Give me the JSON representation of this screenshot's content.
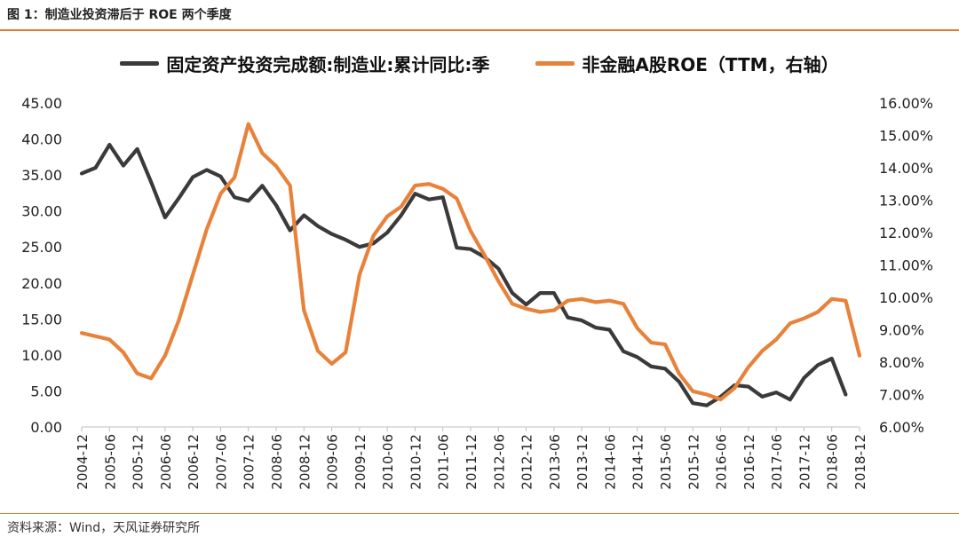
{
  "figure_title": "图 1：制造业投资滞后于 ROE 两个季度",
  "source_note": "资料来源：Wind，天风证券研究所",
  "colors": {
    "series_invest": "#3a3a3a",
    "series_roe": "#e8823a",
    "rule": "#e07c2f"
  },
  "chart_data": {
    "type": "line",
    "x": [
      "2004-12",
      "2005-03",
      "2005-06",
      "2005-09",
      "2005-12",
      "2006-03",
      "2006-06",
      "2006-09",
      "2006-12",
      "2007-03",
      "2007-06",
      "2007-09",
      "2007-12",
      "2008-03",
      "2008-06",
      "2008-09",
      "2008-12",
      "2009-03",
      "2009-06",
      "2009-09",
      "2009-12",
      "2010-03",
      "2010-06",
      "2010-09",
      "2010-12",
      "2011-03",
      "2011-06",
      "2011-09",
      "2011-12",
      "2012-03",
      "2012-06",
      "2012-09",
      "2012-12",
      "2013-03",
      "2013-06",
      "2013-09",
      "2013-12",
      "2014-03",
      "2014-06",
      "2014-09",
      "2014-12",
      "2015-03",
      "2015-06",
      "2015-09",
      "2015-12",
      "2016-03",
      "2016-06",
      "2016-09",
      "2016-12",
      "2017-03",
      "2017-06",
      "2017-09",
      "2017-12",
      "2018-03",
      "2018-06",
      "2018-09",
      "2018-12"
    ],
    "x_tick_labels": [
      "2004-12",
      "2005-06",
      "2005-12",
      "2006-06",
      "2006-12",
      "2007-06",
      "2007-12",
      "2008-06",
      "2008-12",
      "2009-06",
      "2009-12",
      "2010-06",
      "2010-12",
      "2011-06",
      "2011-12",
      "2012-06",
      "2012-12",
      "2013-06",
      "2013-12",
      "2014-06",
      "2014-12",
      "2015-06",
      "2015-12",
      "2016-06",
      "2016-12",
      "2017-06",
      "2017-12",
      "2018-06",
      "2018-12"
    ],
    "y_left_ticks": [
      "0.00",
      "5.00",
      "10.00",
      "15.00",
      "20.00",
      "25.00",
      "30.00",
      "35.00",
      "40.00",
      "45.00"
    ],
    "y_right_ticks": [
      "6.00%",
      "7.00%",
      "8.00%",
      "9.00%",
      "10.00%",
      "11.00%",
      "12.00%",
      "13.00%",
      "14.00%",
      "15.00%",
      "16.00%"
    ],
    "ylim_left": [
      0,
      45
    ],
    "ylim_right": [
      6,
      16
    ],
    "grid": false,
    "legend_position": "top-center",
    "series": [
      {
        "name": "固定资产投资完成额:制造业:累计同比:季",
        "axis": "left",
        "color": "#3a3a3a",
        "values": [
          35.2,
          36.0,
          39.2,
          36.3,
          38.6,
          34.0,
          29.1,
          31.8,
          34.7,
          35.7,
          34.8,
          31.9,
          31.4,
          33.5,
          30.8,
          27.3,
          29.4,
          27.9,
          26.8,
          26.0,
          25.0,
          25.5,
          27.0,
          29.4,
          32.4,
          31.6,
          31.9,
          24.9,
          24.7,
          23.6,
          22.0,
          18.6,
          17.0,
          18.6,
          18.6,
          15.2,
          14.8,
          13.8,
          13.5,
          10.5,
          9.7,
          8.4,
          8.1,
          6.3,
          3.3,
          3.0,
          4.2,
          5.8,
          5.6,
          4.2,
          4.8,
          3.8,
          6.8,
          8.6,
          9.5,
          4.5,
          null
        ]
      },
      {
        "name": "非金融A股ROE（TTM，右轴）",
        "axis": "right",
        "color": "#e8823a",
        "values": [
          8.9,
          8.8,
          8.7,
          8.3,
          7.65,
          7.5,
          8.2,
          9.3,
          10.7,
          12.1,
          13.2,
          13.7,
          15.35,
          14.45,
          14.05,
          13.45,
          9.6,
          8.35,
          7.95,
          8.3,
          10.7,
          11.9,
          12.5,
          12.8,
          13.45,
          13.5,
          13.35,
          13.05,
          12.05,
          11.3,
          10.5,
          9.8,
          9.65,
          9.55,
          9.6,
          9.9,
          9.95,
          9.85,
          9.9,
          9.8,
          9.05,
          8.6,
          8.55,
          7.65,
          7.1,
          7.0,
          6.85,
          7.2,
          7.85,
          8.35,
          8.7,
          9.2,
          9.35,
          9.55,
          9.95,
          9.9,
          8.2
        ]
      }
    ]
  }
}
